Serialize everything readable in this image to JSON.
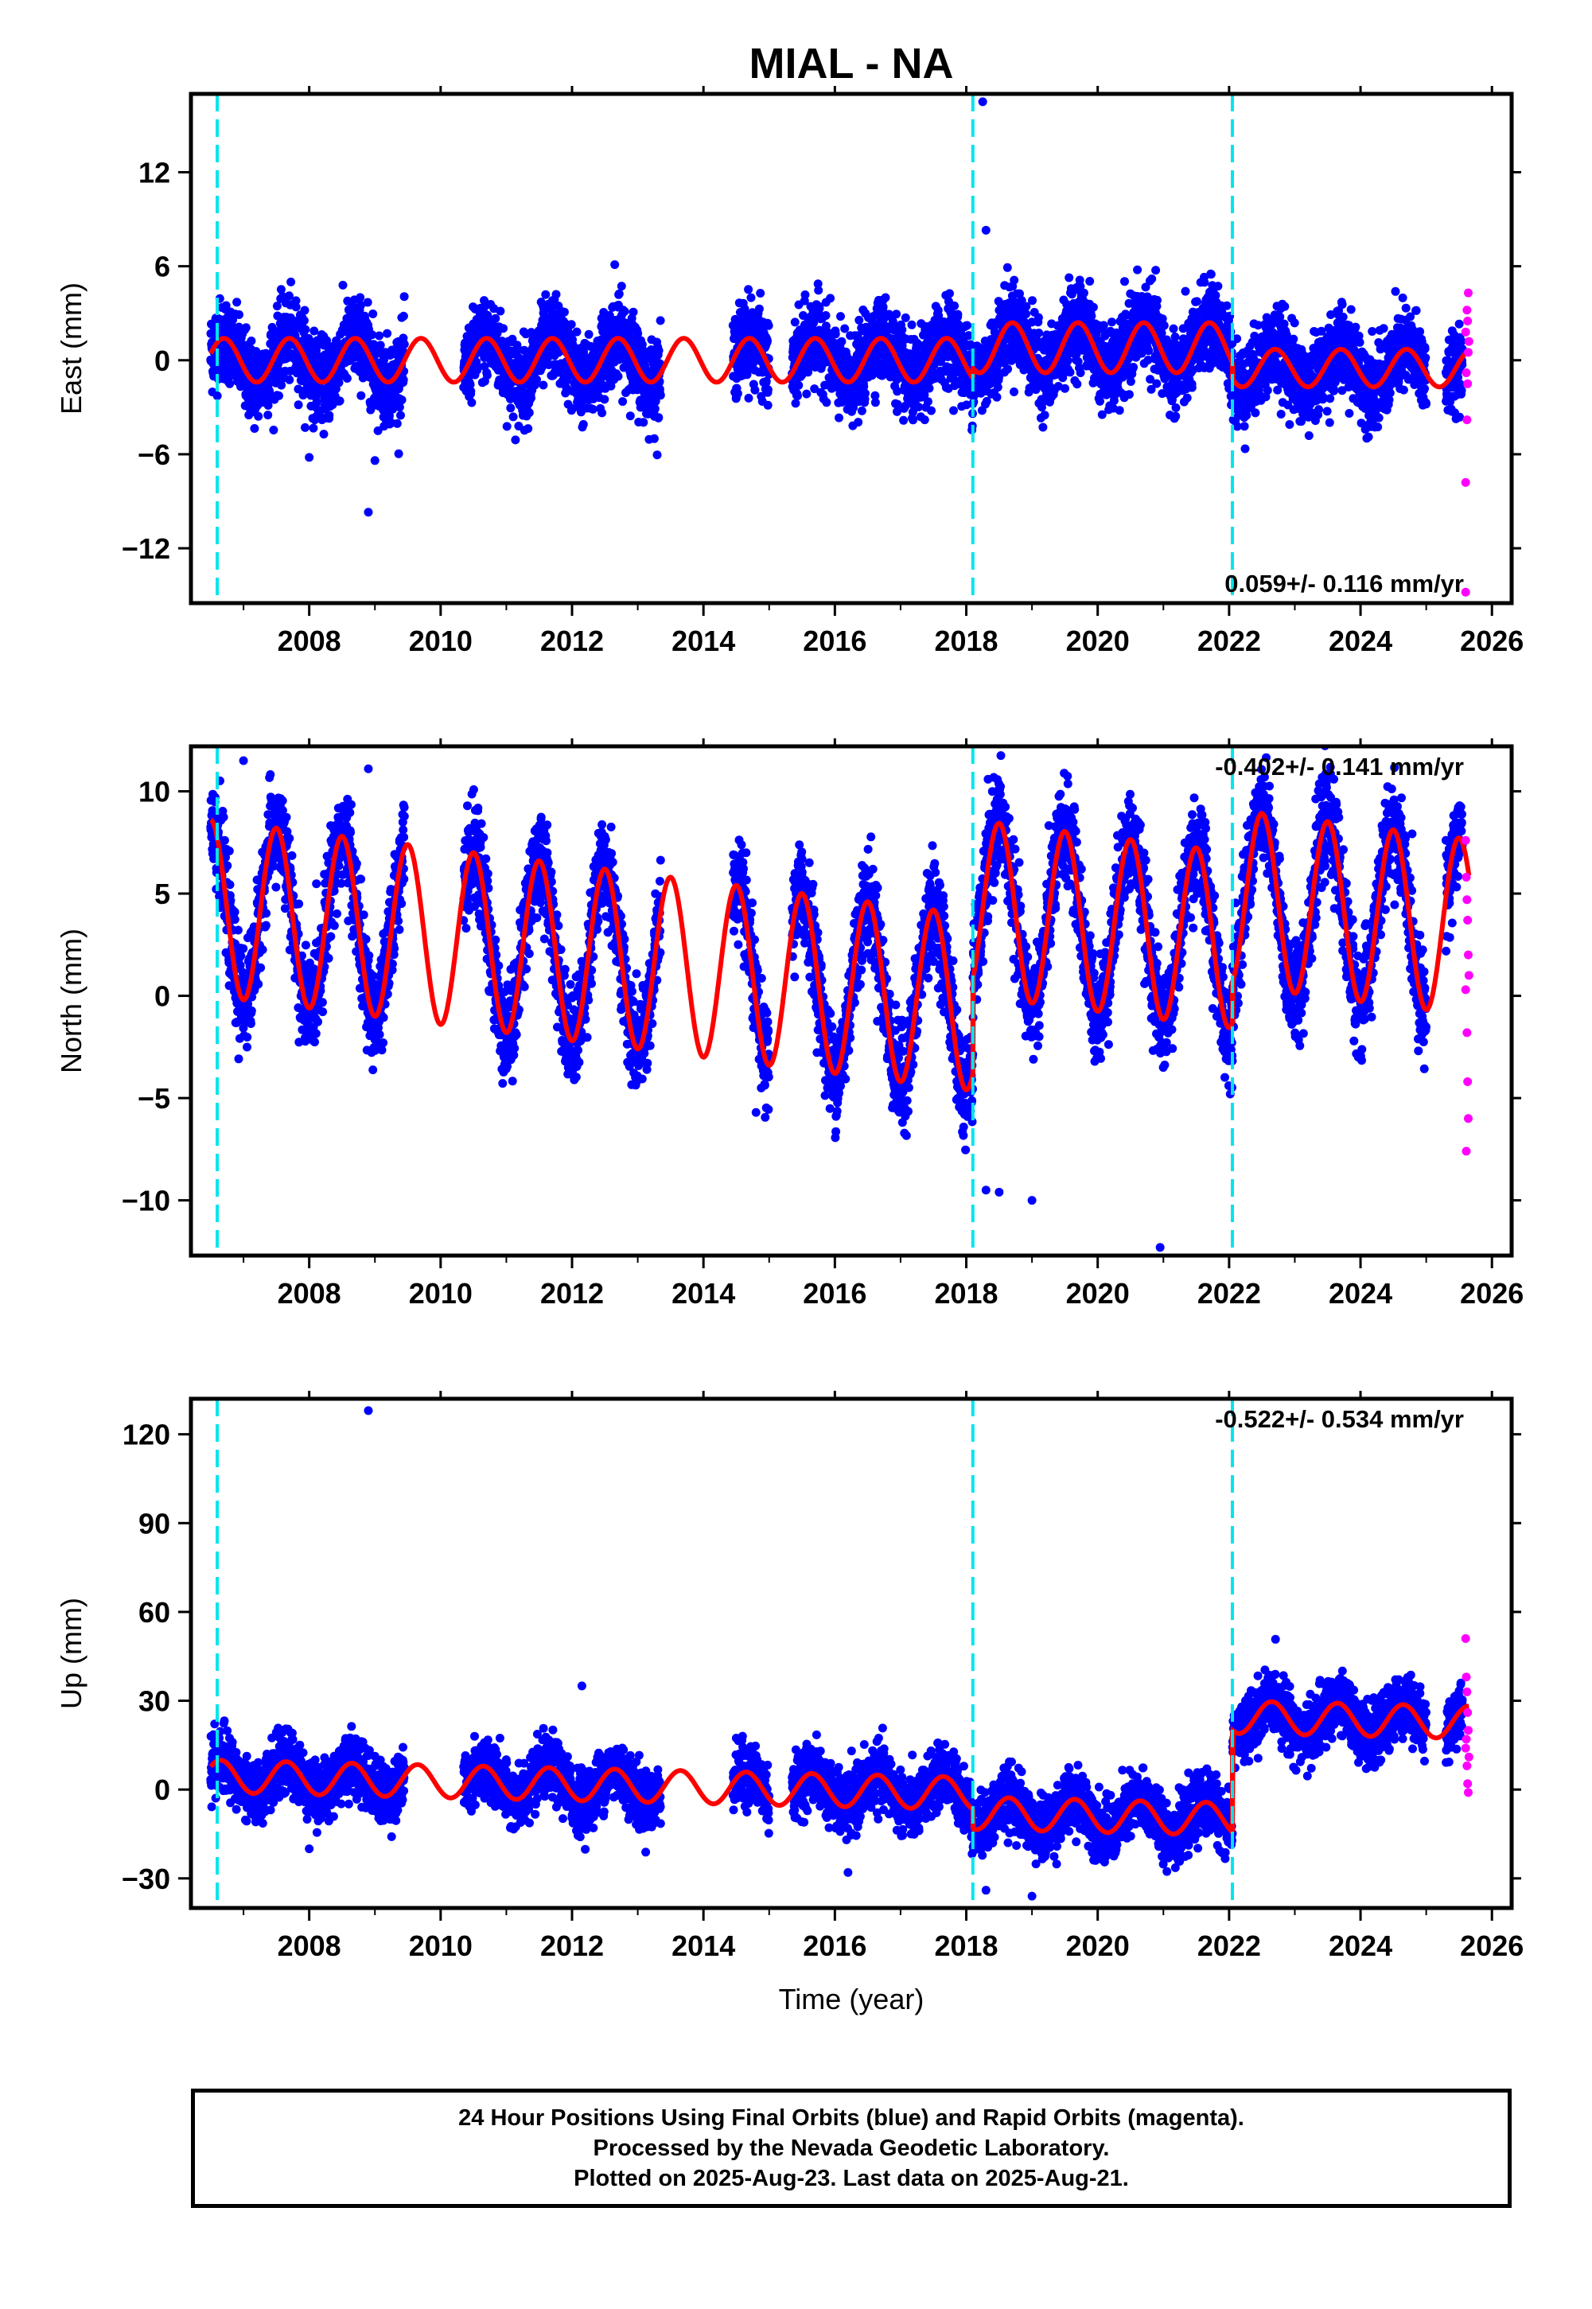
{
  "title": "MIAL - NA",
  "footer": {
    "line1": "24 Hour Positions Using Final Orbits (blue) and Rapid Orbits (magenta).",
    "line2": "Processed by the Nevada Geodetic Laboratory.",
    "line3": "Plotted on 2025-Aug-23. Last data on 2025-Aug-21."
  },
  "colors": {
    "final_orbits": "#0000ff",
    "rapid_orbits": "#ff00ff",
    "model": "#ff0000",
    "event_lines": "#00e5ee",
    "frame": "#000000"
  },
  "chart_data": [
    {
      "type": "scatter",
      "ylabel": "East (mm)",
      "xlabel": "",
      "xlim": [
        2006.2,
        2026.3
      ],
      "ylim": [
        -15.5,
        17
      ],
      "xticks": [
        "2008",
        "2010",
        "2012",
        "2014",
        "2016",
        "2018",
        "2020",
        "2022",
        "2024",
        "2026"
      ],
      "yticks": [
        "12",
        "6",
        "0",
        "−6",
        "−12"
      ],
      "ytick_values": [
        12,
        6,
        0,
        -6,
        -12
      ],
      "rate_label": "0.059+/- 0.116 mm/yr",
      "rate_position": "bottom-right",
      "event_lines": [
        2006.6,
        2018.1,
        2022.05
      ],
      "model": {
        "name": "",
        "segments": [
          {
            "t0": 2006.5,
            "t1": 2018.1,
            "offset": 0.0,
            "slope": 0.0,
            "annual_amp": 1.4,
            "annual_phase_yr": 0.7
          },
          {
            "t0": 2018.1,
            "t1": 2022.05,
            "offset": 0.8,
            "slope": 0.0,
            "annual_amp": 1.6,
            "annual_phase_yr": 0.7
          },
          {
            "t0": 2022.05,
            "t1": 2025.65,
            "offset": -0.5,
            "slope": 0.0,
            "annual_amp": 1.2,
            "annual_phase_yr": 0.7
          }
        ]
      },
      "final_series": {
        "name": "",
        "spans": [
          [
            2006.5,
            2009.45
          ],
          [
            2010.35,
            2013.35
          ],
          [
            2014.45,
            2015.0
          ],
          [
            2015.35,
            2025.0
          ],
          [
            2025.3,
            2025.55
          ]
        ],
        "scatter_sd": 1.3
      },
      "outliers": [
        {
          "x": 2008.9,
          "y": -9.7
        },
        {
          "x": 2008.0,
          "y": -6.2
        },
        {
          "x": 2018.25,
          "y": 16.5
        },
        {
          "x": 2018.3,
          "y": 8.3
        },
        {
          "x": 2012.65,
          "y": 6.1
        },
        {
          "x": 2009.0,
          "y": -6.4
        }
      ],
      "rapid_points": [
        {
          "x": 2025.6,
          "y": -14.8
        },
        {
          "x": 2025.6,
          "y": -7.8
        },
        {
          "x": 2025.62,
          "y": -3.8
        },
        {
          "x": 2025.63,
          "y": -1.5
        },
        {
          "x": 2025.64,
          "y": 0.5
        },
        {
          "x": 2025.6,
          "y": 1.8
        },
        {
          "x": 2025.62,
          "y": 3.2
        },
        {
          "x": 2025.64,
          "y": 4.3
        },
        {
          "x": 2025.63,
          "y": 2.5
        },
        {
          "x": 2025.61,
          "y": -0.8
        },
        {
          "x": 2025.65,
          "y": 1.2
        }
      ]
    },
    {
      "type": "scatter",
      "ylabel": "North (mm)",
      "xlabel": "",
      "xlim": [
        2006.2,
        2026.3
      ],
      "ylim": [
        -12.7,
        12.2
      ],
      "xticks": [
        "2008",
        "2010",
        "2012",
        "2014",
        "2016",
        "2018",
        "2020",
        "2022",
        "2024",
        "2026"
      ],
      "yticks": [
        "10",
        "5",
        "0",
        "−5",
        "−10"
      ],
      "ytick_values": [
        10,
        5,
        0,
        -5,
        -10
      ],
      "rate_label": "-0.402+/- 0.141 mm/yr",
      "rate_position": "top-right",
      "event_lines": [
        2006.6,
        2018.1,
        2022.05
      ],
      "model": {
        "name": "",
        "segments": [
          {
            "t0": 2006.5,
            "t1": 2018.1,
            "offset": 4.3,
            "slope": -0.4,
            "annual_amp": 4.3,
            "annual_phase_yr": 0.5
          },
          {
            "t0": 2018.1,
            "t1": 2022.05,
            "offset": 4.3,
            "slope": -0.4,
            "annual_amp": 4.3,
            "annual_phase_yr": 0.5
          },
          {
            "t0": 2022.05,
            "t1": 2025.65,
            "offset": 4.8,
            "slope": -0.4,
            "annual_amp": 4.3,
            "annual_phase_yr": 0.5
          }
        ]
      },
      "final_series": {
        "name": "",
        "spans": [
          [
            2006.5,
            2009.45
          ],
          [
            2010.35,
            2013.35
          ],
          [
            2014.45,
            2015.0
          ],
          [
            2015.35,
            2025.0
          ],
          [
            2025.3,
            2025.55
          ]
        ],
        "scatter_sd": 1.2
      },
      "outliers": [
        {
          "x": 2007.0,
          "y": 11.5
        },
        {
          "x": 2008.9,
          "y": 11.1
        },
        {
          "x": 2020.95,
          "y": -12.3
        },
        {
          "x": 2018.3,
          "y": -9.5
        },
        {
          "x": 2019.0,
          "y": -10.0
        },
        {
          "x": 2014.8,
          "y": -5.7
        },
        {
          "x": 2018.5,
          "y": -9.6
        }
      ],
      "rapid_points": [
        {
          "x": 2025.6,
          "y": 7.6
        },
        {
          "x": 2025.61,
          "y": 5.8
        },
        {
          "x": 2025.62,
          "y": 4.7
        },
        {
          "x": 2025.63,
          "y": 3.7
        },
        {
          "x": 2025.64,
          "y": 2.0
        },
        {
          "x": 2025.6,
          "y": 0.3
        },
        {
          "x": 2025.62,
          "y": -1.8
        },
        {
          "x": 2025.63,
          "y": -4.2
        },
        {
          "x": 2025.64,
          "y": -6.0
        },
        {
          "x": 2025.61,
          "y": -7.6
        },
        {
          "x": 2025.65,
          "y": 1.0
        }
      ]
    },
    {
      "type": "scatter",
      "ylabel": "Up (mm)",
      "xlabel": "Time (year)",
      "xlim": [
        2006.2,
        2026.3
      ],
      "ylim": [
        -40,
        132
      ],
      "xticks": [
        "2008",
        "2010",
        "2012",
        "2014",
        "2016",
        "2018",
        "2020",
        "2022",
        "2024",
        "2026"
      ],
      "yticks": [
        "120",
        "90",
        "60",
        "30",
        "0",
        "−30"
      ],
      "ytick_values": [
        120,
        90,
        60,
        30,
        0,
        -30
      ],
      "rate_label": "-0.522+/- 0.534 mm/yr",
      "rate_position": "top-right",
      "event_lines": [
        2006.6,
        2018.1,
        2022.05
      ],
      "model": {
        "name": "",
        "segments": [
          {
            "t0": 2006.5,
            "t1": 2018.1,
            "offset": 4.5,
            "slope": -0.5,
            "annual_amp": 5.5,
            "annual_phase_yr": 0.65
          },
          {
            "t0": 2018.1,
            "t1": 2022.05,
            "offset": -8.0,
            "slope": -0.5,
            "annual_amp": 5.5,
            "annual_phase_yr": 0.65
          },
          {
            "t0": 2022.05,
            "t1": 2025.65,
            "offset": 24.5,
            "slope": -0.5,
            "annual_amp": 5.5,
            "annual_phase_yr": 0.65
          }
        ]
      },
      "final_series": {
        "name": "",
        "spans": [
          [
            2006.5,
            2009.45
          ],
          [
            2010.35,
            2013.35
          ],
          [
            2014.45,
            2015.0
          ],
          [
            2015.35,
            2025.0
          ],
          [
            2025.3,
            2025.55
          ]
        ],
        "scatter_sd": 5.0
      },
      "outliers": [
        {
          "x": 2008.9,
          "y": 128
        },
        {
          "x": 2012.15,
          "y": 35
        },
        {
          "x": 2008.0,
          "y": -20
        },
        {
          "x": 2018.3,
          "y": -34
        },
        {
          "x": 2019.0,
          "y": -36
        },
        {
          "x": 2016.2,
          "y": -28
        }
      ],
      "rapid_points": [
        {
          "x": 2025.6,
          "y": 51
        },
        {
          "x": 2025.61,
          "y": 38
        },
        {
          "x": 2025.62,
          "y": 33
        },
        {
          "x": 2025.63,
          "y": 26
        },
        {
          "x": 2025.64,
          "y": 20
        },
        {
          "x": 2025.6,
          "y": 14
        },
        {
          "x": 2025.62,
          "y": 8
        },
        {
          "x": 2025.63,
          "y": 2
        },
        {
          "x": 2025.64,
          "y": -1
        },
        {
          "x": 2025.61,
          "y": 17
        },
        {
          "x": 2025.65,
          "y": 11
        }
      ]
    }
  ]
}
